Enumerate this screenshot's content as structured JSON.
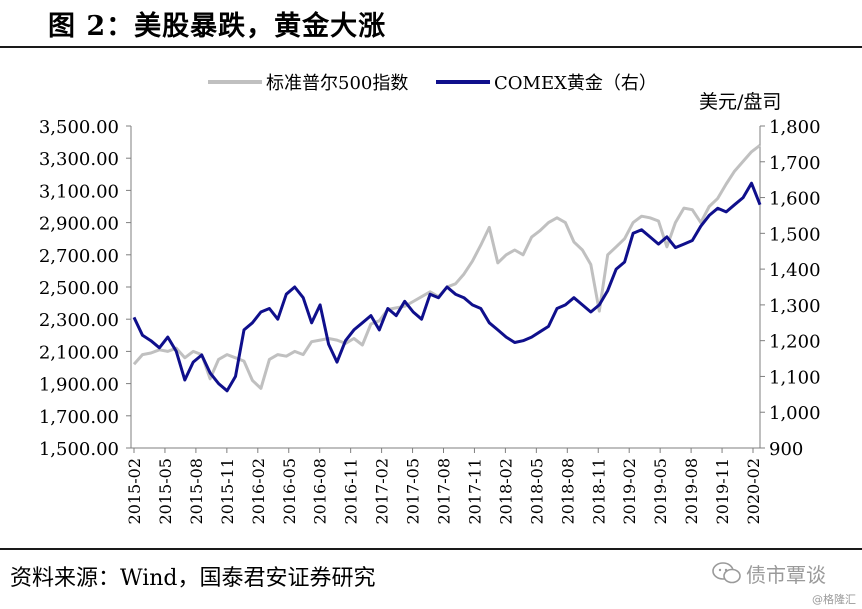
{
  "title": "图 2：美股暴跌，黄金大涨",
  "source": "资料来源：Wind，国泰君安证券研究",
  "watermark": "债市覃谈",
  "credit": "@格隆汇",
  "colors": {
    "sp500": "#c0c0c0",
    "gold": "#0f0f8c",
    "axis": "#7f7f7f"
  },
  "chart_data": {
    "type": "line",
    "x_tick_labels": [
      "2015-02",
      "2015-05",
      "2015-08",
      "2015-11",
      "2016-02",
      "2016-05",
      "2016-08",
      "2016-11",
      "2017-02",
      "2017-05",
      "2017-08",
      "2017-11",
      "2018-02",
      "2018-05",
      "2018-08",
      "2018-11",
      "2019-02",
      "2019-05",
      "2019-08",
      "2019-11",
      "2020-02"
    ],
    "y_left": {
      "range": [
        1500,
        3500
      ],
      "ticks": [
        "1,500.00",
        "1,700.00",
        "1,900.00",
        "2,100.00",
        "2,300.00",
        "2,500.00",
        "2,700.00",
        "2,900.00",
        "3,100.00",
        "3,300.00",
        "3,500.00"
      ]
    },
    "y_right": {
      "range": [
        900,
        1800
      ],
      "unit": "美元/盘司",
      "ticks": [
        "900",
        "1,000",
        "1,100",
        "1,200",
        "1,300",
        "1,400",
        "1,500",
        "1,600",
        "1,700",
        "1,800"
      ]
    },
    "legend": {
      "placement": "top-center"
    },
    "series": [
      {
        "name": "标准普尔500指数",
        "axis": "left",
        "values": [
          2020,
          2080,
          2090,
          2110,
          2100,
          2120,
          2060,
          2100,
          2080,
          1930,
          2050,
          2080,
          2060,
          2040,
          1920,
          1870,
          2050,
          2080,
          2070,
          2100,
          2080,
          2160,
          2170,
          2180,
          2170,
          2150,
          2180,
          2140,
          2270,
          2290,
          2360,
          2370,
          2380,
          2410,
          2440,
          2470,
          2440,
          2500,
          2520,
          2580,
          2660,
          2760,
          2870,
          2650,
          2700,
          2730,
          2700,
          2810,
          2850,
          2900,
          2930,
          2900,
          2780,
          2730,
          2640,
          2350,
          2700,
          2750,
          2800,
          2900,
          2940,
          2930,
          2910,
          2750,
          2900,
          2990,
          2980,
          2900,
          3000,
          3050,
          3140,
          3220,
          3280,
          3340,
          3380
        ]
      },
      {
        "name": "COMEX黄金（右）",
        "axis": "right",
        "values": [
          1265,
          1215,
          1200,
          1180,
          1210,
          1170,
          1090,
          1140,
          1160,
          1110,
          1080,
          1060,
          1100,
          1230,
          1250,
          1280,
          1290,
          1260,
          1330,
          1350,
          1320,
          1250,
          1300,
          1190,
          1140,
          1200,
          1230,
          1250,
          1270,
          1230,
          1290,
          1270,
          1310,
          1280,
          1260,
          1330,
          1320,
          1350,
          1330,
          1320,
          1300,
          1290,
          1250,
          1230,
          1210,
          1195,
          1200,
          1210,
          1225,
          1240,
          1290,
          1300,
          1320,
          1300,
          1280,
          1300,
          1340,
          1400,
          1420,
          1500,
          1510,
          1490,
          1470,
          1490,
          1460,
          1470,
          1480,
          1520,
          1550,
          1570,
          1560,
          1580,
          1600,
          1640,
          1580
        ]
      }
    ]
  }
}
